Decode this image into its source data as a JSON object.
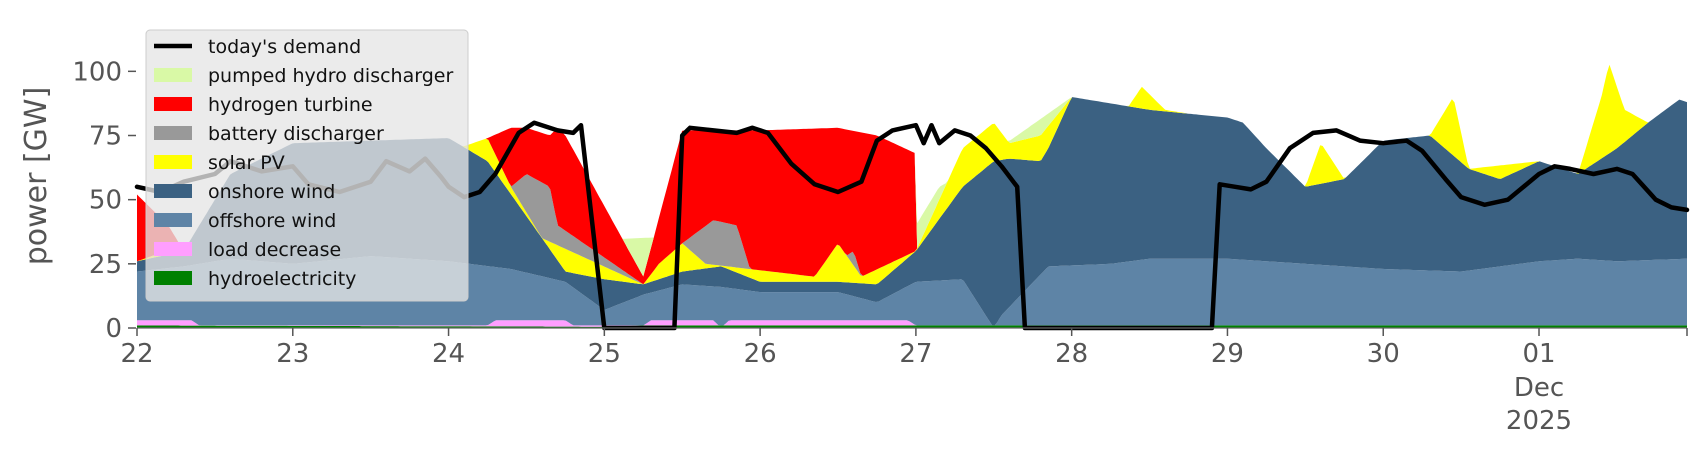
{
  "chart_data": {
    "type": "area",
    "ylabel": "power [GW]",
    "ylim": [
      0,
      120
    ],
    "y_ticks": [
      0,
      25,
      50,
      75,
      100
    ],
    "y_tick_labels": [
      "0",
      "25",
      "50",
      "75",
      "100"
    ],
    "xlim": [
      0,
      9.95
    ],
    "x_ticks": [
      {
        "pos": 0,
        "label": "22"
      },
      {
        "pos": 1,
        "label": "23"
      },
      {
        "pos": 2,
        "label": "24"
      },
      {
        "pos": 3,
        "label": "25"
      },
      {
        "pos": 4,
        "label": "26"
      },
      {
        "pos": 5,
        "label": "27"
      },
      {
        "pos": 6,
        "label": "28"
      },
      {
        "pos": 7,
        "label": "29"
      },
      {
        "pos": 8,
        "label": "30"
      },
      {
        "pos": 9,
        "label": "01"
      }
    ],
    "x_sublabels": [
      "Dec",
      "2025"
    ],
    "x_unit": "days from 22 Nov 2025",
    "grid": false,
    "legend": {
      "position": "top-left",
      "entries": [
        "today's demand",
        "pumped hydro discharger",
        "hydrogen turbine",
        "battery discharger",
        "solar PV",
        "onshore wind",
        "offshore wind",
        "load decrease",
        "hydroelectricity"
      ]
    },
    "colors": {
      "today's demand": "#000000",
      "pumped hydro discharger": "#d9f9a6",
      "hydrogen turbine": "#ff0000",
      "battery discharger": "#999999",
      "solar PV": "#ffff00",
      "onshore wind": "#3b6182",
      "offshore wind": "#5e84a6",
      "load decrease": "#ff9eff",
      "hydroelectricity": "#008000"
    },
    "stack_order": [
      "hydroelectricity",
      "load decrease",
      "offshore wind",
      "onshore wind",
      "solar PV",
      "battery discharger",
      "hydrogen turbine",
      "pumped hydro discharger"
    ],
    "stacked_cumulative_tops": {
      "hydroelectricity": [
        [
          0,
          1
        ],
        [
          3,
          0.5
        ],
        [
          3.25,
          1
        ],
        [
          6,
          1
        ],
        [
          9.95,
          1
        ]
      ],
      "load decrease": [
        [
          0,
          3
        ],
        [
          0.35,
          3
        ],
        [
          0.4,
          1
        ],
        [
          2.25,
          1
        ],
        [
          2.3,
          3
        ],
        [
          2.75,
          3
        ],
        [
          2.8,
          1
        ],
        [
          3.25,
          1
        ],
        [
          3.3,
          3
        ],
        [
          3.7,
          3
        ],
        [
          3.75,
          0
        ],
        [
          3.8,
          3
        ],
        [
          4.95,
          3
        ],
        [
          5.0,
          1
        ],
        [
          9.95,
          1
        ]
      ],
      "offshore wind": [
        [
          0,
          22
        ],
        [
          0.3,
          24
        ],
        [
          0.6,
          27
        ],
        [
          1.0,
          25
        ],
        [
          1.5,
          28
        ],
        [
          2.0,
          26
        ],
        [
          2.4,
          23
        ],
        [
          2.75,
          18
        ],
        [
          3.0,
          7
        ],
        [
          3.25,
          13
        ],
        [
          3.5,
          17
        ],
        [
          3.75,
          16
        ],
        [
          4.0,
          14
        ],
        [
          4.5,
          14
        ],
        [
          4.75,
          10
        ],
        [
          5.0,
          18
        ],
        [
          5.3,
          19
        ],
        [
          5.5,
          0
        ],
        [
          5.55,
          5
        ],
        [
          5.85,
          24
        ],
        [
          6.25,
          25
        ],
        [
          6.5,
          27
        ],
        [
          7.0,
          27
        ],
        [
          7.5,
          25
        ],
        [
          8.0,
          23
        ],
        [
          8.5,
          22
        ],
        [
          9.0,
          26
        ],
        [
          9.25,
          27
        ],
        [
          9.5,
          26
        ],
        [
          9.95,
          27
        ]
      ],
      "onshore wind": [
        [
          0,
          26
        ],
        [
          0.3,
          30
        ],
        [
          0.6,
          60
        ],
        [
          1.0,
          72
        ],
        [
          1.5,
          73
        ],
        [
          2.0,
          74
        ],
        [
          2.25,
          65
        ],
        [
          2.6,
          35
        ],
        [
          2.75,
          22
        ],
        [
          3.0,
          19
        ],
        [
          3.25,
          17
        ],
        [
          3.5,
          22
        ],
        [
          3.75,
          24
        ],
        [
          4.0,
          18
        ],
        [
          4.5,
          18
        ],
        [
          4.75,
          17
        ],
        [
          5.0,
          30
        ],
        [
          5.3,
          55
        ],
        [
          5.5,
          65
        ],
        [
          5.6,
          66
        ],
        [
          5.8,
          65
        ],
        [
          5.85,
          70
        ],
        [
          6.0,
          90
        ],
        [
          6.5,
          85
        ],
        [
          7.0,
          82
        ],
        [
          7.1,
          80
        ],
        [
          7.25,
          70
        ],
        [
          7.5,
          55
        ],
        [
          7.75,
          58
        ],
        [
          8.0,
          73
        ],
        [
          8.3,
          75
        ],
        [
          8.55,
          62
        ],
        [
          8.75,
          58
        ],
        [
          9.0,
          65
        ],
        [
          9.25,
          60
        ],
        [
          9.5,
          70
        ],
        [
          9.7,
          80
        ],
        [
          9.9,
          89
        ],
        [
          9.95,
          88
        ]
      ],
      "solar PV": [
        [
          0,
          26
        ],
        [
          2.25,
          74
        ],
        [
          2.4,
          55
        ],
        [
          2.6,
          35
        ],
        [
          3.25,
          17
        ],
        [
          3.35,
          25
        ],
        [
          3.5,
          33
        ],
        [
          3.65,
          25
        ],
        [
          4.35,
          20
        ],
        [
          4.5,
          33
        ],
        [
          4.65,
          20
        ],
        [
          5.0,
          30
        ],
        [
          5.3,
          70
        ],
        [
          5.5,
          80
        ],
        [
          5.6,
          72
        ],
        [
          5.8,
          75
        ],
        [
          6.0,
          90
        ],
        [
          6.35,
          85
        ],
        [
          6.45,
          94
        ],
        [
          6.6,
          85
        ],
        [
          7.1,
          80
        ],
        [
          7.25,
          70
        ],
        [
          7.5,
          55
        ],
        [
          7.6,
          72
        ],
        [
          7.75,
          58
        ],
        [
          8.0,
          73
        ],
        [
          8.3,
          75
        ],
        [
          8.45,
          90
        ],
        [
          8.55,
          62
        ],
        [
          9.0,
          65
        ],
        [
          9.25,
          60
        ],
        [
          9.4,
          90
        ],
        [
          9.45,
          103
        ],
        [
          9.55,
          85
        ],
        [
          9.7,
          80
        ],
        [
          9.95,
          88
        ]
      ],
      "battery discharger": [
        [
          0,
          26
        ],
        [
          2.4,
          55
        ],
        [
          2.5,
          60
        ],
        [
          2.65,
          55
        ],
        [
          2.7,
          40
        ],
        [
          3.25,
          17
        ],
        [
          3.35,
          25
        ],
        [
          3.5,
          33
        ],
        [
          3.7,
          42
        ],
        [
          3.85,
          40
        ],
        [
          3.95,
          20
        ],
        [
          4.35,
          20
        ],
        [
          4.6,
          30
        ],
        [
          4.65,
          20
        ],
        [
          5.0,
          30
        ]
      ],
      "hydrogen turbine": [
        [
          0,
          52
        ],
        [
          0.2,
          40
        ],
        [
          0.3,
          30
        ],
        [
          2.25,
          74
        ],
        [
          2.4,
          78
        ],
        [
          2.5,
          78
        ],
        [
          2.65,
          75
        ],
        [
          2.7,
          78
        ],
        [
          2.75,
          75
        ],
        [
          3.25,
          20
        ],
        [
          3.5,
          77
        ],
        [
          4.0,
          77
        ],
        [
          4.5,
          78
        ],
        [
          4.75,
          75
        ],
        [
          5.0,
          68
        ]
      ],
      "pumped hydro discharger": [
        [
          0,
          26
        ],
        [
          5.0,
          40
        ],
        [
          5.15,
          55
        ],
        [
          5.3,
          60
        ],
        [
          6.0,
          90
        ]
      ]
    },
    "series": [
      {
        "name": "today's demand",
        "points": [
          [
            0,
            55
          ],
          [
            0.15,
            53
          ],
          [
            0.3,
            57
          ],
          [
            0.5,
            60
          ],
          [
            0.6,
            65
          ],
          [
            0.8,
            61
          ],
          [
            1.0,
            63
          ],
          [
            1.1,
            56
          ],
          [
            1.3,
            53
          ],
          [
            1.5,
            57
          ],
          [
            1.6,
            65
          ],
          [
            1.75,
            61
          ],
          [
            1.85,
            66
          ],
          [
            1.95,
            59
          ],
          [
            2.0,
            55
          ],
          [
            2.1,
            51
          ],
          [
            2.2,
            53
          ],
          [
            2.3,
            60
          ],
          [
            2.45,
            76
          ],
          [
            2.55,
            80
          ],
          [
            2.7,
            77
          ],
          [
            2.8,
            76
          ],
          [
            2.85,
            79
          ],
          [
            3.0,
            0
          ],
          [
            3.45,
            0
          ],
          [
            3.5,
            75
          ],
          [
            3.55,
            78
          ],
          [
            3.7,
            77
          ],
          [
            3.85,
            76
          ],
          [
            3.95,
            78
          ],
          [
            4.05,
            76
          ],
          [
            4.2,
            64
          ],
          [
            4.35,
            56
          ],
          [
            4.5,
            53
          ],
          [
            4.65,
            57
          ],
          [
            4.75,
            73
          ],
          [
            4.85,
            77
          ],
          [
            5.0,
            79
          ],
          [
            5.05,
            72
          ],
          [
            5.1,
            79
          ],
          [
            5.15,
            72
          ],
          [
            5.25,
            77
          ],
          [
            5.35,
            75
          ],
          [
            5.45,
            70
          ],
          [
            5.55,
            63
          ],
          [
            5.65,
            55
          ],
          [
            5.7,
            0
          ],
          [
            6.9,
            0
          ],
          [
            6.95,
            56
          ],
          [
            7.05,
            55
          ],
          [
            7.15,
            54
          ],
          [
            7.25,
            57
          ],
          [
            7.4,
            70
          ],
          [
            7.55,
            76
          ],
          [
            7.7,
            77
          ],
          [
            7.85,
            73
          ],
          [
            8.0,
            72
          ],
          [
            8.15,
            73
          ],
          [
            8.25,
            69
          ],
          [
            8.4,
            58
          ],
          [
            8.5,
            51
          ],
          [
            8.65,
            48
          ],
          [
            8.8,
            50
          ],
          [
            9.0,
            60
          ],
          [
            9.1,
            63
          ],
          [
            9.2,
            62
          ],
          [
            9.35,
            60
          ],
          [
            9.5,
            62
          ],
          [
            9.6,
            60
          ],
          [
            9.75,
            50
          ],
          [
            9.85,
            47
          ],
          [
            9.95,
            46
          ]
        ]
      }
    ]
  }
}
